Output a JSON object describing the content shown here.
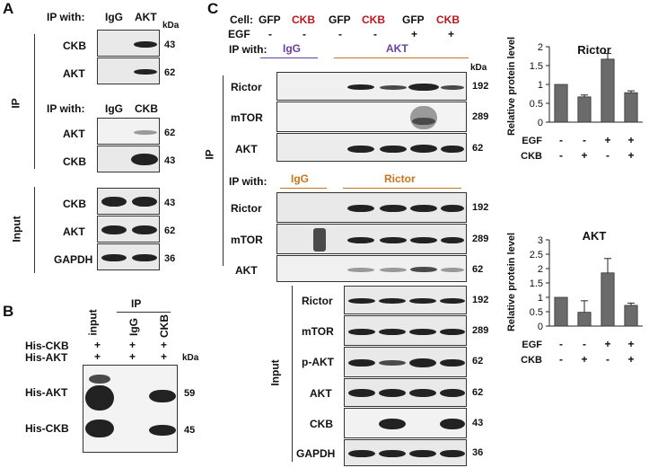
{
  "panelA": {
    "letter": "A",
    "ip1_label": "IP with:",
    "ip1_lane1": "IgG",
    "ip1_lane2": "AKT",
    "kda": "kDa",
    "ip_rows": [
      {
        "label": "CKB",
        "kda": "43"
      },
      {
        "label": "AKT",
        "kda": "62"
      }
    ],
    "ip2_label": "IP with:",
    "ip2_lane1": "IgG",
    "ip2_lane2": "CKB",
    "ip2_rows": [
      {
        "label": "AKT",
        "kda": "62"
      },
      {
        "label": "CKB",
        "kda": "43"
      }
    ],
    "ip_side": "IP",
    "input_side": "Input",
    "input_rows": [
      {
        "label": "CKB",
        "kda": "43"
      },
      {
        "label": "AKT",
        "kda": "62"
      },
      {
        "label": "GAPDH",
        "kda": "36"
      }
    ]
  },
  "panelB": {
    "letter": "B",
    "ip_header": "IP",
    "lanes": [
      "input",
      "IgG",
      "CKB"
    ],
    "kda": "kDa",
    "row1": "His-CKB",
    "row2": "His-AKT",
    "plus": "+",
    "bands": [
      {
        "label": "His-AKT",
        "kda": "59"
      },
      {
        "label": "His-CKB",
        "kda": "45"
      }
    ]
  },
  "panelC": {
    "letter": "C",
    "cell_label": "Cell:",
    "cells": [
      "GFP",
      "CKB",
      "GFP",
      "CKB",
      "GFP",
      "CKB"
    ],
    "egf_label": "EGF",
    "egf": [
      "-",
      "-",
      "-",
      "-",
      "+",
      "+"
    ],
    "ip_with": "IP with:",
    "igg": "IgG",
    "akt": "AKT",
    "rictor": "Rictor",
    "kda": "kDa",
    "ip_side": "IP",
    "input_side": "Input",
    "ip_akt_rows": [
      {
        "label": "Rictor",
        "kda": "192"
      },
      {
        "label": "mTOR",
        "kda": "289"
      },
      {
        "label": "AKT",
        "kda": "62"
      }
    ],
    "ip_rictor_rows": [
      {
        "label": "Rictor",
        "kda": "192"
      },
      {
        "label": "mTOR",
        "kda": "289"
      },
      {
        "label": "AKT",
        "kda": "62"
      }
    ],
    "input_rows": [
      {
        "label": "Rictor",
        "kda": "192"
      },
      {
        "label": "mTOR",
        "kda": "289"
      },
      {
        "label": "p-AKT",
        "kda": "62"
      },
      {
        "label": "AKT",
        "kda": "62"
      },
      {
        "label": "CKB",
        "kda": "43"
      },
      {
        "label": "GAPDH",
        "kda": "36"
      }
    ]
  },
  "chart_data": [
    {
      "type": "bar",
      "title": "Rictor",
      "ylabel": "Relative protein level",
      "ylim": [
        0,
        2
      ],
      "yticks": [
        "0",
        "0.5",
        "1",
        "1.5",
        "2"
      ],
      "values": [
        1.0,
        0.67,
        1.67,
        0.78
      ],
      "errors": [
        0,
        0.05,
        0.15,
        0.05
      ],
      "egf_label": "EGF",
      "egf": [
        "-",
        "-",
        "+",
        "+"
      ],
      "ckb_label": "CKB",
      "ckb": [
        "-",
        "+",
        "-",
        "+"
      ]
    },
    {
      "type": "bar",
      "title": "AKT",
      "ylabel": "Relative protein level",
      "ylim": [
        0,
        3
      ],
      "yticks": [
        "0",
        "0.5",
        "1",
        "1.5",
        "2",
        "2.5",
        "3"
      ],
      "values": [
        1.0,
        0.48,
        1.85,
        0.72
      ],
      "errors": [
        0,
        0.4,
        0.5,
        0.08
      ],
      "egf_label": "EGF",
      "egf": [
        "-",
        "-",
        "+",
        "+"
      ],
      "ckb_label": "CKB",
      "ckb": [
        "-",
        "+",
        "-",
        "+"
      ]
    }
  ]
}
